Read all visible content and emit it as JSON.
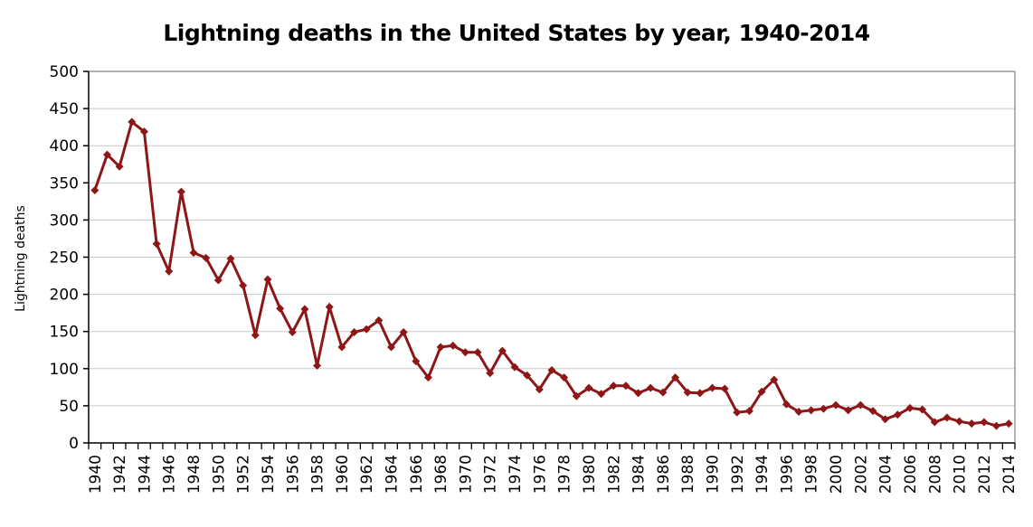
{
  "chart_data": {
    "type": "line",
    "title": "Lightning deaths in the United States by year, 1940-2014",
    "xlabel": "",
    "ylabel": "Lightning deaths",
    "x": [
      1940,
      1941,
      1942,
      1943,
      1944,
      1945,
      1946,
      1947,
      1948,
      1949,
      1950,
      1951,
      1952,
      1953,
      1954,
      1955,
      1956,
      1957,
      1958,
      1959,
      1960,
      1961,
      1962,
      1963,
      1964,
      1965,
      1966,
      1967,
      1968,
      1969,
      1970,
      1971,
      1972,
      1973,
      1974,
      1975,
      1976,
      1977,
      1978,
      1979,
      1980,
      1981,
      1982,
      1983,
      1984,
      1985,
      1986,
      1987,
      1988,
      1989,
      1990,
      1991,
      1992,
      1993,
      1994,
      1995,
      1996,
      1997,
      1998,
      1999,
      2000,
      2001,
      2002,
      2003,
      2004,
      2005,
      2006,
      2007,
      2008,
      2009,
      2010,
      2011,
      2012,
      2013,
      2014
    ],
    "series": [
      {
        "name": "Lightning deaths",
        "values": [
          340,
          388,
          372,
          432,
          419,
          268,
          231,
          338,
          256,
          249,
          219,
          248,
          212,
          145,
          220,
          181,
          149,
          180,
          104,
          183,
          129,
          149,
          153,
          165,
          129,
          149,
          110,
          88,
          129,
          131,
          122,
          122,
          94,
          124,
          102,
          91,
          72,
          98,
          88,
          63,
          74,
          66,
          77,
          77,
          67,
          74,
          68,
          88,
          68,
          67,
          74,
          73,
          41,
          43,
          69,
          85,
          52,
          42,
          44,
          46,
          51,
          44,
          51,
          43,
          32,
          38,
          47,
          45,
          28,
          34,
          29,
          26,
          28,
          23,
          26
        ]
      }
    ],
    "ylim": [
      0,
      500
    ],
    "ytick_step": 50,
    "xtick_label_step": 2,
    "grid": "horizontal",
    "legend": "none",
    "marker": "diamond",
    "colors": {
      "series": "#8E1616",
      "gridline": "#C8C8C8",
      "plot_border": "#808080",
      "axis": "#000000",
      "text": "#000000",
      "background": "#FFFFFF"
    }
  }
}
